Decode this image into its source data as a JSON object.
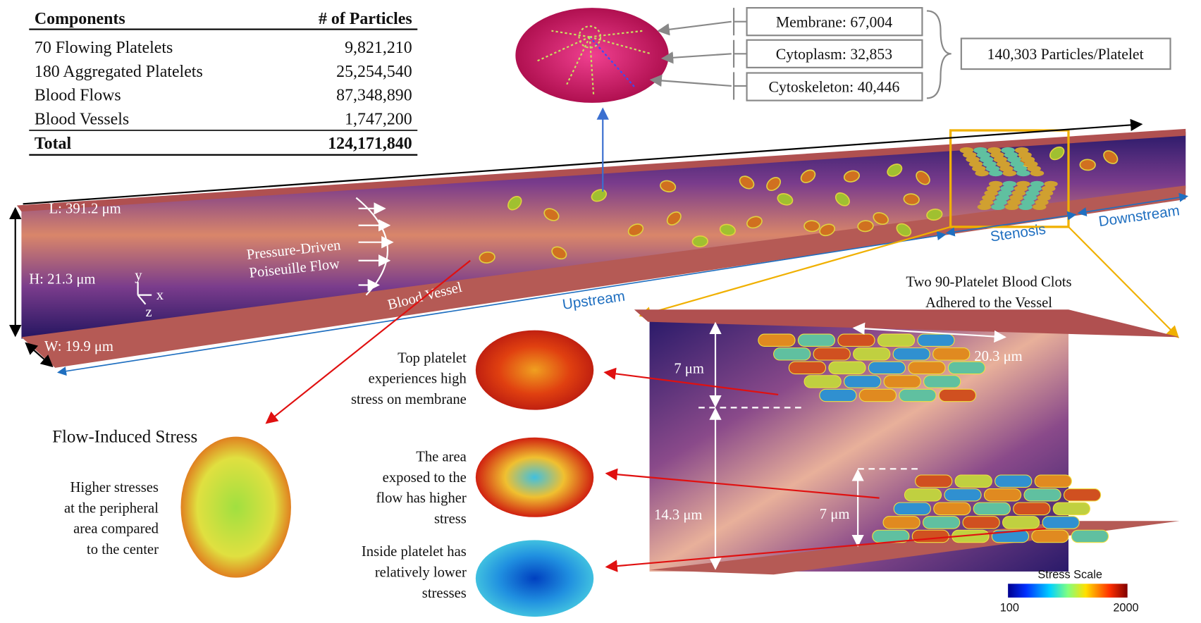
{
  "table": {
    "header": [
      "Components",
      "# of Particles"
    ],
    "rows": [
      [
        "70 Flowing Platelets",
        "9,821,210"
      ],
      [
        "180 Aggregated Platelets",
        "25,254,540"
      ],
      [
        "Blood Flows",
        "87,348,890"
      ],
      [
        "Blood Vessels",
        "1,747,200"
      ]
    ],
    "total": [
      "Total",
      "124,171,840"
    ]
  },
  "platelet_components": [
    "Membrane: 67,004",
    "Cytoplasm: 32,853",
    "Cytoskeleton: 40,446"
  ],
  "platelet_total": "140,303 Particles/Platelet",
  "vessel": {
    "length": "L: 391.2 μm",
    "height": "H: 21.3 μm",
    "width": "W: 19.9 μm",
    "axes": [
      "y",
      "x",
      "z"
    ],
    "flow": [
      "Pressure-Driven",
      "Poiseuille Flow"
    ],
    "label": "Blood Vessel"
  },
  "regions": [
    "Upstream",
    "Stenosis",
    "Downstream"
  ],
  "clot_title": [
    "Two 90-Platelet Blood Clots",
    "Adhered to the Vessel"
  ],
  "clot_dims": [
    "7 μm",
    "14.3 μm",
    "7 μm",
    "20.3 μm"
  ],
  "stress_title": "Flow-Induced Stress",
  "stress_note": [
    "Higher stresses",
    "at the peripheral",
    "area compared",
    "to the center"
  ],
  "platelet_notes": [
    [
      "Top platelet",
      "experiences high",
      "stress on membrane"
    ],
    [
      "The area",
      "exposed to the",
      "flow has higher",
      "stress"
    ],
    [
      "Inside platelet has",
      "relatively lower",
      "stresses"
    ]
  ],
  "stress_scale": {
    "title": "Stress Scale",
    "min": 100,
    "max": 2000
  }
}
